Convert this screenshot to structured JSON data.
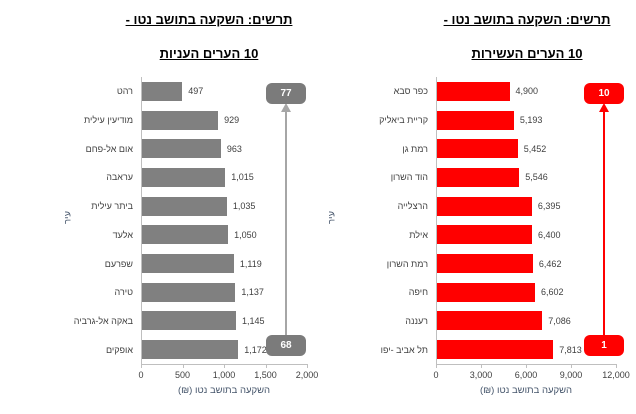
{
  "chart_data": [
    {
      "type": "bar",
      "orientation": "horizontal",
      "title_line1": "תרשים: השקעה בתושב נטו -",
      "title_line2": "10 הערים העשירות",
      "categories": [
        "כפר סבא",
        "קריית ביאליק",
        "רמת גן",
        "הוד השרון",
        "הרצלייה",
        "אילת",
        "רמת השרון",
        "חיפה",
        "רעננה",
        "תל אביב -יפו"
      ],
      "values": [
        4900,
        5193,
        5452,
        5546,
        6395,
        6400,
        6462,
        6602,
        7086,
        7813
      ],
      "value_labels": [
        "4,900",
        "5,193",
        "5,452",
        "5,546",
        "6,395",
        "6,400",
        "6,462",
        "6,602",
        "7,086",
        "7,813"
      ],
      "xlabel": "השקעה בתושב נטו (₪)",
      "ylabel": "עיר",
      "xlim": [
        0,
        12000
      ],
      "xticks": [
        "0",
        "3,000",
        "6,000",
        "9,000",
        "12,000"
      ],
      "grid": false,
      "legend": false,
      "bar_color": "#ff0000",
      "annotations": {
        "badge_top": "10",
        "badge_bottom": "1",
        "badge_color": "#ff0000",
        "arrow_color": "#ff0000",
        "arrow_direction": "up"
      }
    },
    {
      "type": "bar",
      "orientation": "horizontal",
      "title_line1": "תרשים: השקעה בתושב נטו -",
      "title_line2": "10 הערים העניות",
      "categories": [
        "רהט",
        "מודיעין עילית",
        "אום אל-פחם",
        "עראבה",
        "ביתר עילית",
        "אלעד",
        "שפרעם",
        "טירה",
        "באקה אל-גרביה",
        "אופקים"
      ],
      "values": [
        497,
        929,
        963,
        1015,
        1035,
        1050,
        1119,
        1137,
        1145,
        1172
      ],
      "value_labels": [
        "497",
        "929",
        "963",
        "1,015",
        "1,035",
        "1,050",
        "1,119",
        "1,137",
        "1,145",
        "1,172"
      ],
      "xlabel": "השקעה בתושב נטו (₪)",
      "ylabel": "עיר",
      "xlim": [
        0,
        2000
      ],
      "xticks": [
        "0",
        "500",
        "1,000",
        "1,500",
        "2,000"
      ],
      "grid": false,
      "legend": false,
      "bar_color": "#808080",
      "annotations": {
        "badge_top": "77",
        "badge_bottom": "68",
        "badge_color": "#7b7b7b",
        "arrow_color": "#a6a6a6",
        "arrow_direction": "up"
      }
    }
  ]
}
